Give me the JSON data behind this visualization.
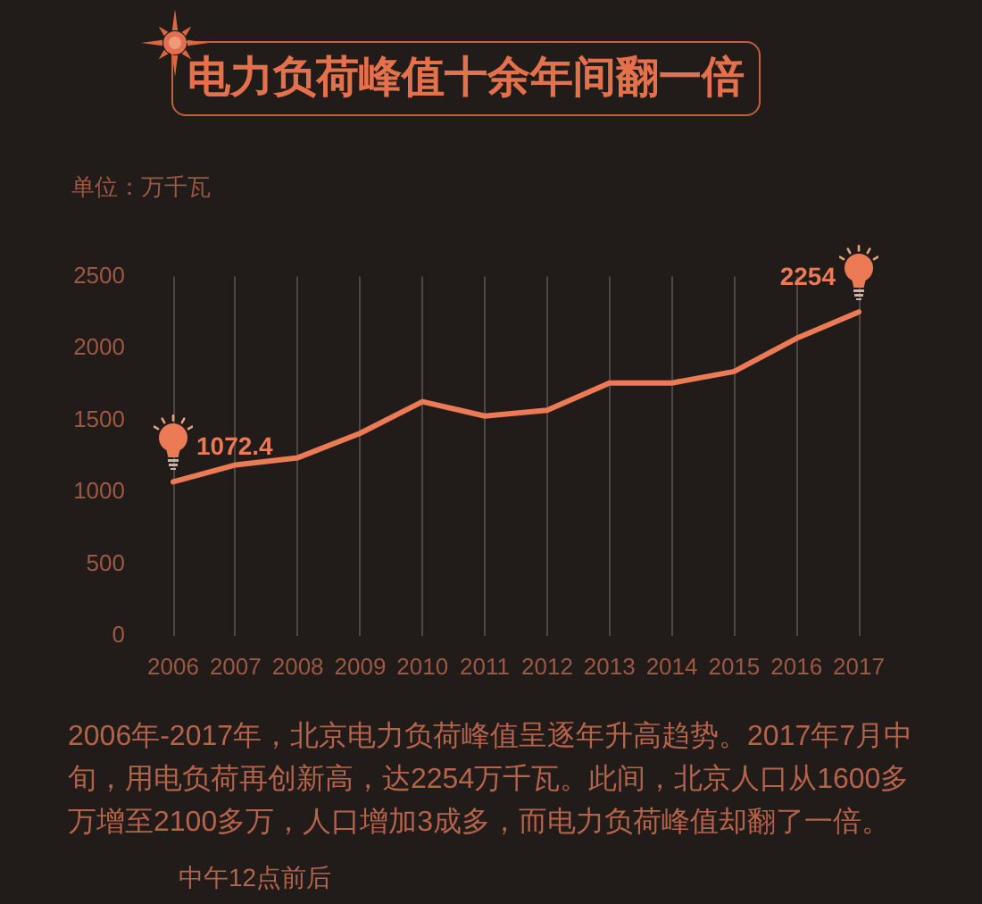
{
  "chart_data": {
    "type": "line",
    "title": "电力负荷峰值十余年间翻一倍",
    "ylabel": "单位：万千瓦",
    "categories": [
      "2006",
      "2007",
      "2008",
      "2009",
      "2010",
      "2011",
      "2012",
      "2013",
      "2014",
      "2015",
      "2016",
      "2017"
    ],
    "series": [
      {
        "color": "#ec7a55",
        "values": [
          1072.4,
          1190,
          1240,
          1410,
          1630,
          1530,
          1570,
          1760,
          1760,
          1840,
          2070,
          2254
        ],
        "value_labels": [
          "1072.4",
          null,
          null,
          null,
          null,
          null,
          null,
          null,
          null,
          null,
          null,
          "2254"
        ]
      }
    ],
    "ylim": [
      0,
      2500
    ],
    "yticks": [
      0,
      500,
      1000,
      1500,
      2000,
      2500
    ],
    "grid": "x",
    "annotations": [
      "2006年-2017年，北京电力负荷峰值呈逐年升高趋势。2017年7月中旬，用电负荷再创新高，达2254万千瓦。此间，北京人口从1600多万增至2100多万，人口增加3成多，而电力负荷峰值却翻了一倍。",
      "中午12点前后"
    ]
  }
}
